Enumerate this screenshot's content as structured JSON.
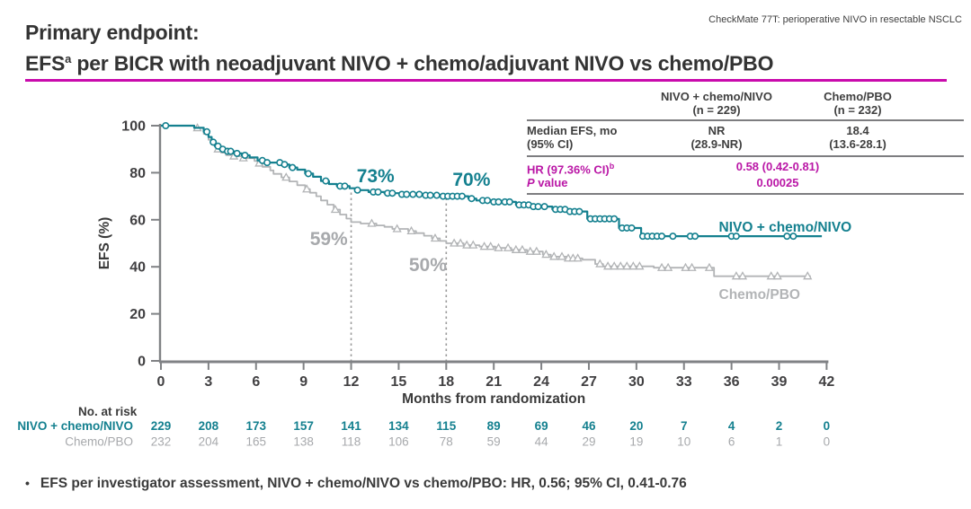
{
  "header": {
    "note": "CheckMate 77T: perioperative NIVO in resectable NSCLC"
  },
  "title": {
    "line1": "Primary endpoint:",
    "line2_prefix": "EFS",
    "line2_sup": "a",
    "line2_rest": " per BICR with neoadjuvant NIVO + chemo/adjuvant NIVO vs chemo/PBO"
  },
  "colors": {
    "teal": "#14808f",
    "series_gray": "#b2b4b6",
    "magenta": "#ba17a6",
    "underline_magenta": "#c90bac",
    "axis": "#808285",
    "tick_text": "#414042",
    "dark_text": "#3a3a3a",
    "atrisk_gray": "#a7a9ac",
    "ref_line": "#9a9a9a"
  },
  "stats_table": {
    "col1_header_l1": "NIVO + chemo/NIVO",
    "col1_header_l2": "(n = 229)",
    "col2_header_l1": "Chemo/PBO",
    "col2_header_l2": "(n = 232)",
    "median_label_l1": "Median EFS, mo",
    "median_label_l2": "(95% CI)",
    "median_c1_l1": "NR",
    "median_c1_l2": "(28.9-NR)",
    "median_c2_l1": "18.4",
    "median_c2_l2": "(13.6-28.1)",
    "hr_label": "HR (97.36% CI)",
    "hr_sup": "b",
    "hr_value": "0.58 (0.42-0.81)",
    "p_label_p": "P",
    "p_label_rest": " value",
    "p_value": "0.00025"
  },
  "chart_data": {
    "type": "line",
    "subtype": "kaplan-meier-step",
    "title": "",
    "xlabel": "Months from randomization",
    "ylabel": "EFS (%)",
    "xlim": [
      0,
      42
    ],
    "ylim": [
      0,
      100
    ],
    "xticks": [
      0,
      3,
      6,
      9,
      12,
      15,
      18,
      21,
      24,
      27,
      30,
      33,
      36,
      39,
      42
    ],
    "yticks": [
      0,
      20,
      40,
      60,
      80,
      100
    ],
    "grid": false,
    "ref_lines": [
      {
        "x": 12,
        "y_top": 72.5
      },
      {
        "x": 18,
        "y_top": 70.0
      }
    ],
    "annotations": [
      {
        "text": "73%",
        "x": 12.35,
        "y": 76.0,
        "color": "#14808f"
      },
      {
        "text": "70%",
        "x": 18.4,
        "y": 74.4,
        "color": "#14808f"
      },
      {
        "text": "59%",
        "x": 9.4,
        "y": 49.2,
        "color": "#a7a9ac"
      },
      {
        "text": "50%",
        "x": 15.65,
        "y": 38.2,
        "color": "#a7a9ac"
      }
    ],
    "series": [
      {
        "id": "chemo-pbo",
        "name": "Chemo/PBO",
        "color": "#b2b4b6",
        "marker": "triangle",
        "label_x": 35.2,
        "label_y": 26.3,
        "steps": [
          [
            0,
            100
          ],
          [
            2.1,
            100
          ],
          [
            2.1,
            99.0
          ],
          [
            2.7,
            99.0
          ],
          [
            2.7,
            96.5
          ],
          [
            3.0,
            96.5
          ],
          [
            3.0,
            94.0
          ],
          [
            3.2,
            94.0
          ],
          [
            3.2,
            92.0
          ],
          [
            3.5,
            92.0
          ],
          [
            3.5,
            90.0
          ],
          [
            3.8,
            90.0
          ],
          [
            3.8,
            88.5
          ],
          [
            4.1,
            88.5
          ],
          [
            4.1,
            87.5
          ],
          [
            4.5,
            87.5
          ],
          [
            4.5,
            87.0
          ],
          [
            5.1,
            87.0
          ],
          [
            5.1,
            86.2
          ],
          [
            5.9,
            86.2
          ],
          [
            5.9,
            85.0
          ],
          [
            6.1,
            85.0
          ],
          [
            6.1,
            84.0
          ],
          [
            6.4,
            84.0
          ],
          [
            6.4,
            82.5
          ],
          [
            6.9,
            82.5
          ],
          [
            6.9,
            81.0
          ],
          [
            7.1,
            81.0
          ],
          [
            7.1,
            79.5
          ],
          [
            7.6,
            79.5
          ],
          [
            7.6,
            78.0
          ],
          [
            8.1,
            78.0
          ],
          [
            8.1,
            76.3
          ],
          [
            8.6,
            76.3
          ],
          [
            8.6,
            74.7
          ],
          [
            9.1,
            74.7
          ],
          [
            9.1,
            73.0
          ],
          [
            9.4,
            73.0
          ],
          [
            9.4,
            71.5
          ],
          [
            9.8,
            71.5
          ],
          [
            9.8,
            70.0
          ],
          [
            10.1,
            70.0
          ],
          [
            10.1,
            68.2
          ],
          [
            10.5,
            68.2
          ],
          [
            10.5,
            66.4
          ],
          [
            10.9,
            66.4
          ],
          [
            10.9,
            64.3
          ],
          [
            11.3,
            64.3
          ],
          [
            11.3,
            62.2
          ],
          [
            11.7,
            62.2
          ],
          [
            11.7,
            60.5
          ],
          [
            12.0,
            60.5
          ],
          [
            12.0,
            59.0
          ],
          [
            12.6,
            59.0
          ],
          [
            12.6,
            58.4
          ],
          [
            13.6,
            58.4
          ],
          [
            13.6,
            57.6
          ],
          [
            14.1,
            57.6
          ],
          [
            14.1,
            57.0
          ],
          [
            14.6,
            57.0
          ],
          [
            14.6,
            56.1
          ],
          [
            15.6,
            56.1
          ],
          [
            15.6,
            55.2
          ],
          [
            16.1,
            55.2
          ],
          [
            16.1,
            54.3
          ],
          [
            16.6,
            54.3
          ],
          [
            16.6,
            53.2
          ],
          [
            17.1,
            53.2
          ],
          [
            17.1,
            52.1
          ],
          [
            17.6,
            52.1
          ],
          [
            17.6,
            51.0
          ],
          [
            18.0,
            51.0
          ],
          [
            18.0,
            50.0
          ],
          [
            19.1,
            50.0
          ],
          [
            19.1,
            49.2
          ],
          [
            20.1,
            49.2
          ],
          [
            20.1,
            48.6
          ],
          [
            21.1,
            48.6
          ],
          [
            21.1,
            48.0
          ],
          [
            22.1,
            48.0
          ],
          [
            22.1,
            47.2
          ],
          [
            23.1,
            47.2
          ],
          [
            23.1,
            46.5
          ],
          [
            24.1,
            46.5
          ],
          [
            24.1,
            45.2
          ],
          [
            24.6,
            45.2
          ],
          [
            24.6,
            44.3
          ],
          [
            25.6,
            44.3
          ],
          [
            25.6,
            43.6
          ],
          [
            26.6,
            43.6
          ],
          [
            26.6,
            43.0
          ],
          [
            27.4,
            43.0
          ],
          [
            27.4,
            41.2
          ],
          [
            27.9,
            41.2
          ],
          [
            27.9,
            40.2
          ],
          [
            31.1,
            40.2
          ],
          [
            31.1,
            39.6
          ],
          [
            34.9,
            39.6
          ],
          [
            34.9,
            36.0
          ],
          [
            35.6,
            36.0
          ],
          [
            41.0,
            36.0
          ]
        ],
        "censor_x": [
          2.3,
          3.6,
          4.6,
          5.2,
          6.2,
          7.9,
          9.2,
          11.0,
          13.3,
          14.9,
          15.8,
          17.3,
          18.5,
          18.9,
          19.3,
          19.7,
          20.4,
          20.8,
          21.3,
          21.9,
          22.4,
          22.8,
          23.3,
          23.7,
          24.3,
          24.8,
          25.3,
          25.7,
          26.0,
          26.3,
          27.7,
          28.2,
          28.6,
          29.0,
          29.4,
          29.8,
          30.2,
          31.6,
          32.0,
          33.1,
          33.5,
          34.6,
          36.3,
          36.7,
          38.5,
          38.9,
          40.8
        ]
      },
      {
        "id": "nivo-chemo-nivo",
        "name": "NIVO + chemo/NIVO",
        "color": "#14808f",
        "marker": "circle",
        "label_x": 35.2,
        "label_y": 55.0,
        "steps": [
          [
            0,
            100
          ],
          [
            2.1,
            100
          ],
          [
            2.1,
            99.1
          ],
          [
            2.7,
            99.1
          ],
          [
            2.7,
            97.4
          ],
          [
            3.0,
            97.4
          ],
          [
            3.0,
            95.2
          ],
          [
            3.2,
            95.2
          ],
          [
            3.2,
            93.0
          ],
          [
            3.4,
            93.0
          ],
          [
            3.4,
            91.3
          ],
          [
            3.7,
            91.3
          ],
          [
            3.7,
            90.0
          ],
          [
            4.1,
            90.0
          ],
          [
            4.1,
            89.1
          ],
          [
            4.6,
            89.1
          ],
          [
            4.6,
            88.2
          ],
          [
            5.1,
            88.2
          ],
          [
            5.1,
            87.4
          ],
          [
            5.6,
            87.4
          ],
          [
            5.6,
            86.5
          ],
          [
            6.1,
            86.5
          ],
          [
            6.1,
            85.2
          ],
          [
            6.6,
            85.2
          ],
          [
            6.6,
            84.3
          ],
          [
            7.7,
            84.3
          ],
          [
            7.7,
            83.5
          ],
          [
            8.1,
            83.5
          ],
          [
            8.1,
            82.2
          ],
          [
            8.6,
            82.2
          ],
          [
            8.6,
            81.3
          ],
          [
            9.1,
            81.3
          ],
          [
            9.1,
            79.6
          ],
          [
            9.6,
            79.6
          ],
          [
            9.6,
            78.3
          ],
          [
            10.1,
            78.3
          ],
          [
            10.1,
            76.5
          ],
          [
            10.6,
            76.5
          ],
          [
            10.6,
            75.2
          ],
          [
            11.1,
            75.2
          ],
          [
            11.1,
            74.3
          ],
          [
            11.9,
            74.3
          ],
          [
            11.9,
            73.4
          ],
          [
            12.3,
            73.4
          ],
          [
            12.3,
            72.6
          ],
          [
            13.1,
            72.6
          ],
          [
            13.1,
            71.8
          ],
          [
            14.1,
            71.8
          ],
          [
            14.1,
            71.3
          ],
          [
            15.1,
            71.3
          ],
          [
            15.1,
            70.8
          ],
          [
            16.6,
            70.8
          ],
          [
            16.6,
            70.4
          ],
          [
            17.6,
            70.4
          ],
          [
            17.6,
            70.0
          ],
          [
            19.4,
            70.0
          ],
          [
            19.4,
            69.0
          ],
          [
            19.9,
            69.0
          ],
          [
            19.9,
            68.2
          ],
          [
            20.9,
            68.2
          ],
          [
            20.9,
            67.6
          ],
          [
            22.4,
            67.6
          ],
          [
            22.4,
            66.3
          ],
          [
            23.4,
            66.3
          ],
          [
            23.4,
            65.6
          ],
          [
            24.7,
            65.6
          ],
          [
            24.7,
            64.4
          ],
          [
            25.7,
            64.4
          ],
          [
            25.7,
            63.5
          ],
          [
            26.9,
            63.5
          ],
          [
            26.9,
            60.4
          ],
          [
            28.9,
            60.4
          ],
          [
            28.9,
            56.5
          ],
          [
            30.3,
            56.5
          ],
          [
            30.3,
            53.0
          ],
          [
            41.7,
            53.0
          ]
        ],
        "censor_x": [
          0.3,
          2.9,
          3.3,
          3.6,
          3.9,
          4.2,
          4.4,
          4.8,
          5.3,
          6.4,
          6.7,
          7.5,
          7.8,
          8.3,
          9.3,
          10.4,
          11.3,
          11.6,
          12.4,
          13.4,
          13.7,
          14.3,
          14.6,
          15.2,
          15.5,
          15.9,
          16.3,
          16.7,
          17.0,
          17.4,
          17.8,
          18.1,
          18.4,
          18.7,
          19.0,
          19.6,
          20.3,
          20.6,
          21.0,
          21.3,
          21.7,
          22.0,
          22.6,
          22.9,
          23.2,
          23.5,
          23.8,
          24.2,
          24.9,
          25.2,
          25.5,
          25.8,
          26.1,
          26.4,
          27.1,
          27.4,
          27.7,
          28.0,
          28.3,
          28.6,
          29.1,
          29.4,
          29.7,
          30.4,
          30.7,
          31.0,
          31.3,
          31.6,
          32.3,
          33.4,
          33.7,
          36.0,
          36.3,
          39.5,
          39.9
        ]
      }
    ],
    "at_risk": {
      "title": "No. at risk",
      "rows": [
        {
          "id": "nivo-chemo-nivo",
          "label": "NIVO + chemo/NIVO",
          "color": "#14808f",
          "bold": true,
          "values": [
            229,
            208,
            173,
            157,
            141,
            134,
            115,
            89,
            69,
            46,
            20,
            7,
            4,
            2,
            0
          ]
        },
        {
          "id": "chemo-pbo",
          "label": "Chemo/PBO",
          "color": "#a7a9ac",
          "bold": false,
          "values": [
            232,
            204,
            165,
            138,
            118,
            106,
            78,
            59,
            44,
            29,
            19,
            10,
            6,
            1,
            0
          ]
        }
      ]
    }
  },
  "footer": {
    "bullet": "•",
    "text": "EFS per investigator assessment, NIVO + chemo/NIVO vs chemo/PBO: HR, 0.56; 95% CI, 0.41-0.76"
  }
}
